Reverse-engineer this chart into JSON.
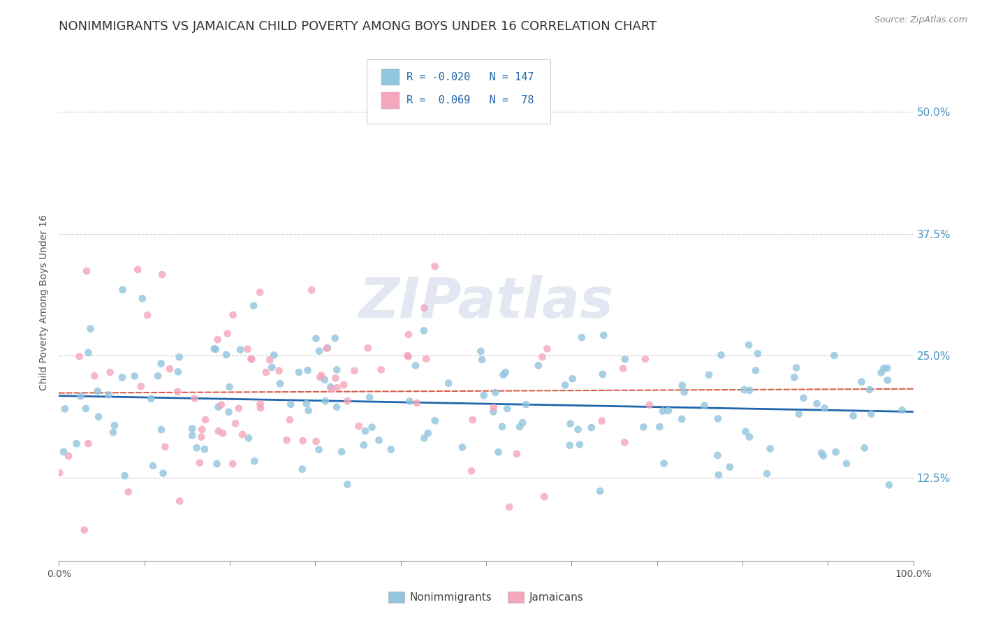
{
  "title": "NONIMMIGRANTS VS JAMAICAN CHILD POVERTY AMONG BOYS UNDER 16 CORRELATION CHART",
  "source": "Source: ZipAtlas.com",
  "ylabel": "Child Poverty Among Boys Under 16",
  "ytick_labels": [
    "12.5%",
    "25.0%",
    "37.5%",
    "50.0%"
  ],
  "ytick_values": [
    0.125,
    0.25,
    0.375,
    0.5
  ],
  "legend_line1": "R = -0.020   N = 147",
  "legend_line2": "R =  0.069   N =  78",
  "legend_blue_label": "Nonimmigrants",
  "legend_pink_label": "Jamaicans",
  "blue_dot_color": "#92c5de",
  "pink_dot_color": "#f4a6bc",
  "blue_line_color": "#2166ac",
  "pink_line_color": "#d6604d",
  "watermark": "ZIPatlas",
  "xlim": [
    0.0,
    1.0
  ],
  "ylim": [
    0.04,
    0.57
  ],
  "title_fontsize": 13,
  "axis_fontsize": 10,
  "tick_fontsize": 10,
  "blue_scatter_seed": 42,
  "pink_scatter_seed": 7
}
